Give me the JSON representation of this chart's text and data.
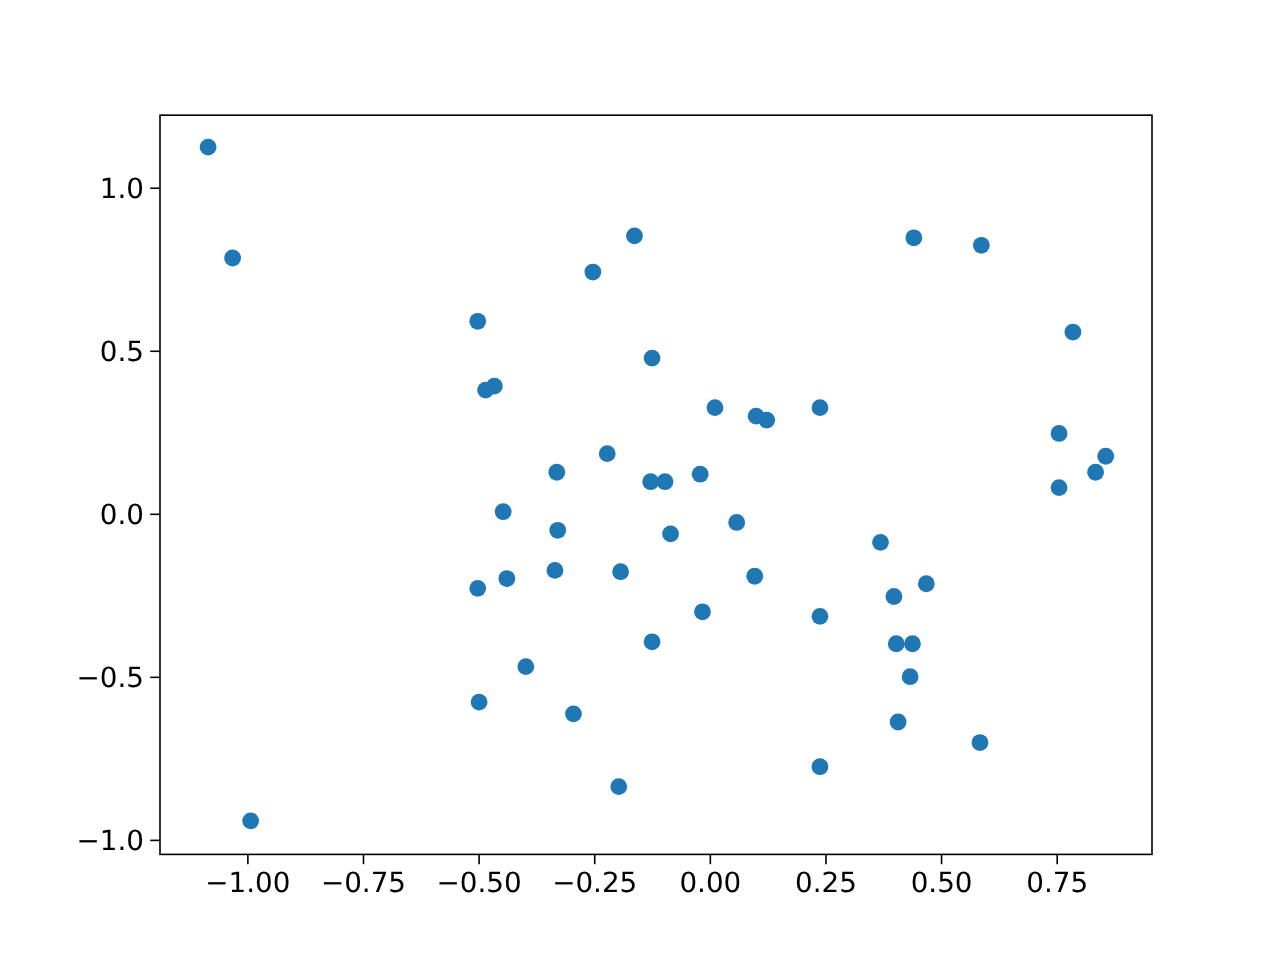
{
  "chart_data": {
    "type": "scatter",
    "color": "#1f77b4",
    "marker": "circle",
    "x": [
      -1.086,
      -1.033,
      -0.503,
      -0.486,
      -0.467,
      -0.254,
      -0.164,
      -0.126,
      -0.332,
      -0.223,
      -0.129,
      0.44,
      0.586,
      0.784,
      0.01,
      0.099,
      0.122,
      0.237,
      0.754,
      0.855,
      0.833,
      0.754,
      -0.098,
      -0.022,
      -0.448,
      -0.33,
      -0.336,
      -0.194,
      -0.503,
      -0.44,
      -0.126,
      -0.399,
      -0.5,
      -0.296,
      -0.198,
      -0.994,
      -0.086,
      0.057,
      0.096,
      -0.017,
      0.237,
      0.368,
      0.397,
      0.467,
      0.402,
      0.437,
      0.432,
      0.406,
      0.583,
      0.237
    ],
    "values": [
      1.126,
      0.786,
      0.592,
      0.381,
      0.393,
      0.743,
      0.854,
      0.479,
      0.129,
      0.186,
      0.1,
      0.848,
      0.825,
      0.559,
      0.327,
      0.301,
      0.289,
      0.327,
      0.248,
      0.178,
      0.129,
      0.082,
      0.1,
      0.123,
      0.008,
      -0.049,
      -0.172,
      -0.176,
      -0.227,
      -0.197,
      -0.391,
      -0.467,
      -0.576,
      -0.612,
      -0.835,
      -0.94,
      -0.06,
      -0.025,
      -0.19,
      -0.299,
      -0.313,
      -0.086,
      -0.252,
      -0.213,
      -0.397,
      -0.397,
      -0.498,
      -0.637,
      -0.7,
      -0.774
    ],
    "xlim": [
      -1.19,
      0.955
    ],
    "ylim": [
      -1.043,
      1.224
    ],
    "xticks": [
      {
        "value": -1,
        "label": "−1.00"
      },
      {
        "value": -0.75,
        "label": "−0.75"
      },
      {
        "value": -0.5,
        "label": "−0.50"
      },
      {
        "value": -0.25,
        "label": "−0.25"
      },
      {
        "value": 0,
        "label": "0.00"
      },
      {
        "value": 0.25,
        "label": "0.25"
      },
      {
        "value": 0.5,
        "label": "0.50"
      },
      {
        "value": 0.75,
        "label": "0.75"
      }
    ],
    "yticks": [
      {
        "value": -1,
        "label": "−1.0"
      },
      {
        "value": -0.5,
        "label": "−0.5"
      },
      {
        "value": 0,
        "label": "0.0"
      },
      {
        "value": 0.5,
        "label": "0.5"
      },
      {
        "value": 1,
        "label": "1.0"
      }
    ]
  }
}
